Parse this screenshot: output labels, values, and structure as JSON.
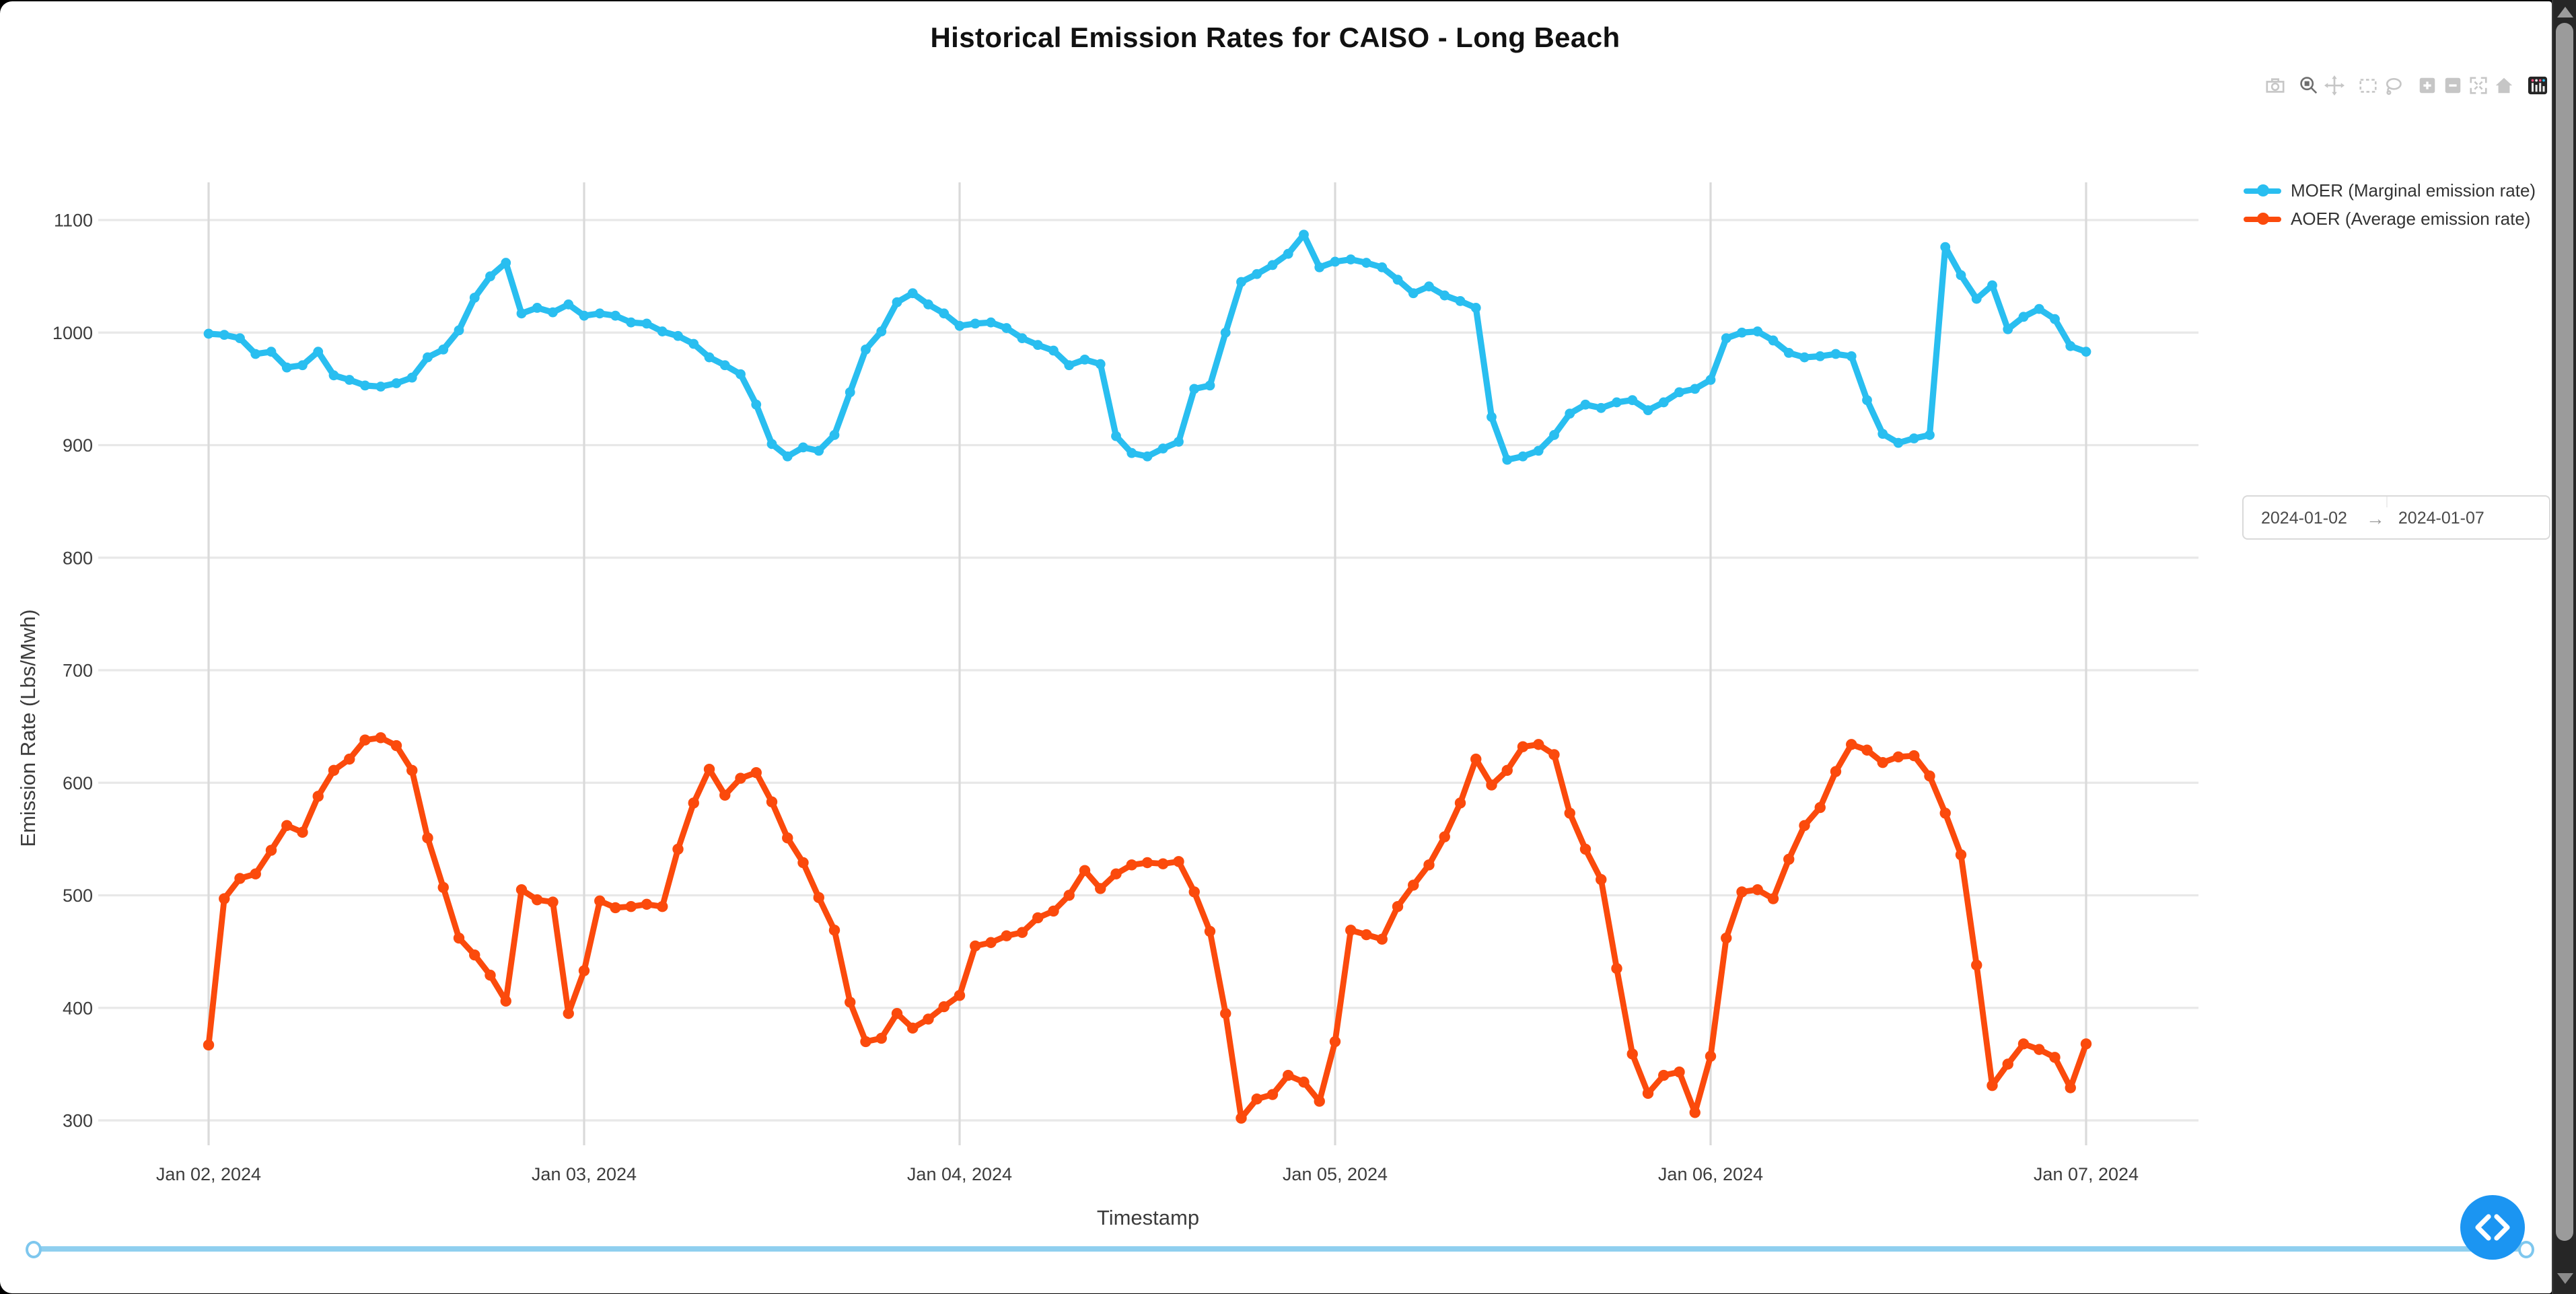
{
  "title": "Historical Emission Rates for CAISO - Long Beach",
  "modebar": {
    "active_tool": "zoom",
    "icons": [
      "camera",
      "zoom",
      "pan",
      "box-select",
      "lasso",
      "zoom-in",
      "zoom-out",
      "autoscale",
      "reset-home",
      "plotly-logo"
    ]
  },
  "legend": {
    "items": [
      {
        "label": "MOER (Marginal emission rate)",
        "color": "#29BEF0"
      },
      {
        "label": "AOER (Average emission rate)",
        "color": "#FB4A0C"
      }
    ]
  },
  "date_range": {
    "start": "2024-01-02",
    "separator": "→",
    "end": "2024-01-07"
  },
  "colors": {
    "moer": "#29BEF0",
    "aoer": "#FB4A0C",
    "nav-button": "#1B95F2",
    "slider-track": "#8FCFEF",
    "slider-handle-border": "#7EC7EE",
    "grid-h": "#E8E8E8",
    "grid-v": "#DADADA",
    "tick-text": "#3C3C3C",
    "scrollbar-track": "#262626",
    "scrollbar-thumb": "#9B9B9B"
  },
  "chart_data": {
    "type": "line",
    "title": "Historical Emission Rates for CAISO - Long Beach",
    "xlabel": "Timestamp",
    "ylabel": "Emission Rate (Lbs/Mwh)",
    "x_start": "2024-01-02 00:00",
    "x_end": "2024-01-07 00:00",
    "interval_hours": 1,
    "x_ticks": [
      "Jan 02, 2024",
      "Jan 03, 2024",
      "Jan 04, 2024",
      "Jan 05, 2024",
      "Jan 06, 2024",
      "Jan 07, 2024"
    ],
    "y_ticks": [
      300,
      400,
      500,
      600,
      700,
      800,
      900,
      1000,
      1100
    ],
    "ylim": [
      278,
      1133
    ],
    "grid": true,
    "legend_position": "top-right-outside",
    "series": [
      {
        "name": "MOER (Marginal emission rate)",
        "color": "#29BEF0",
        "values": [
          999,
          998,
          995,
          981,
          983,
          969,
          971,
          983,
          962,
          958,
          953,
          952,
          955,
          960,
          978,
          985,
          1002,
          1031,
          1050,
          1062,
          1017,
          1022,
          1018,
          1025,
          1015,
          1017,
          1015,
          1009,
          1008,
          1001,
          997,
          990,
          978,
          971,
          963,
          936,
          901,
          890,
          898,
          895,
          909,
          947,
          985,
          1001,
          1027,
          1035,
          1025,
          1017,
          1006,
          1008,
          1009,
          1004,
          995,
          989,
          984,
          971,
          976,
          972,
          908,
          893,
          890,
          897,
          903,
          950,
          953,
          1000,
          1045,
          1052,
          1060,
          1070,
          1087,
          1058,
          1063,
          1065,
          1062,
          1058,
          1047,
          1035,
          1041,
          1033,
          1028,
          1022,
          925,
          887,
          890,
          895,
          909,
          928,
          936,
          933,
          938,
          940,
          931,
          938,
          947,
          950,
          958,
          995,
          1000,
          1001,
          993,
          982,
          978,
          979,
          981,
          979,
          940,
          910,
          902,
          906,
          909,
          1076,
          1051,
          1030,
          1042,
          1003,
          1014,
          1021,
          1012,
          988,
          983
        ]
      },
      {
        "name": "AOER (Average emission rate)",
        "color": "#FB4A0C",
        "values": [
          367,
          497,
          515,
          519,
          540,
          562,
          556,
          588,
          611,
          621,
          638,
          640,
          633,
          611,
          551,
          507,
          462,
          447,
          429,
          406,
          505,
          496,
          494,
          395,
          433,
          495,
          489,
          490,
          492,
          490,
          541,
          582,
          612,
          589,
          604,
          609,
          583,
          551,
          529,
          498,
          469,
          405,
          370,
          373,
          395,
          382,
          390,
          401,
          411,
          455,
          458,
          464,
          467,
          480,
          486,
          500,
          522,
          506,
          519,
          527,
          529,
          528,
          530,
          503,
          468,
          395,
          302,
          319,
          323,
          340,
          334,
          317,
          370,
          469,
          465,
          461,
          490,
          509,
          527,
          552,
          582,
          621,
          598,
          611,
          632,
          634,
          625,
          573,
          541,
          514,
          435,
          359,
          324,
          340,
          343,
          307,
          357,
          462,
          503,
          505,
          497,
          532,
          562,
          578,
          610,
          634,
          629,
          618,
          623,
          624,
          606,
          573,
          536,
          438,
          331,
          350,
          368,
          363,
          356,
          329,
          368
        ]
      }
    ]
  }
}
